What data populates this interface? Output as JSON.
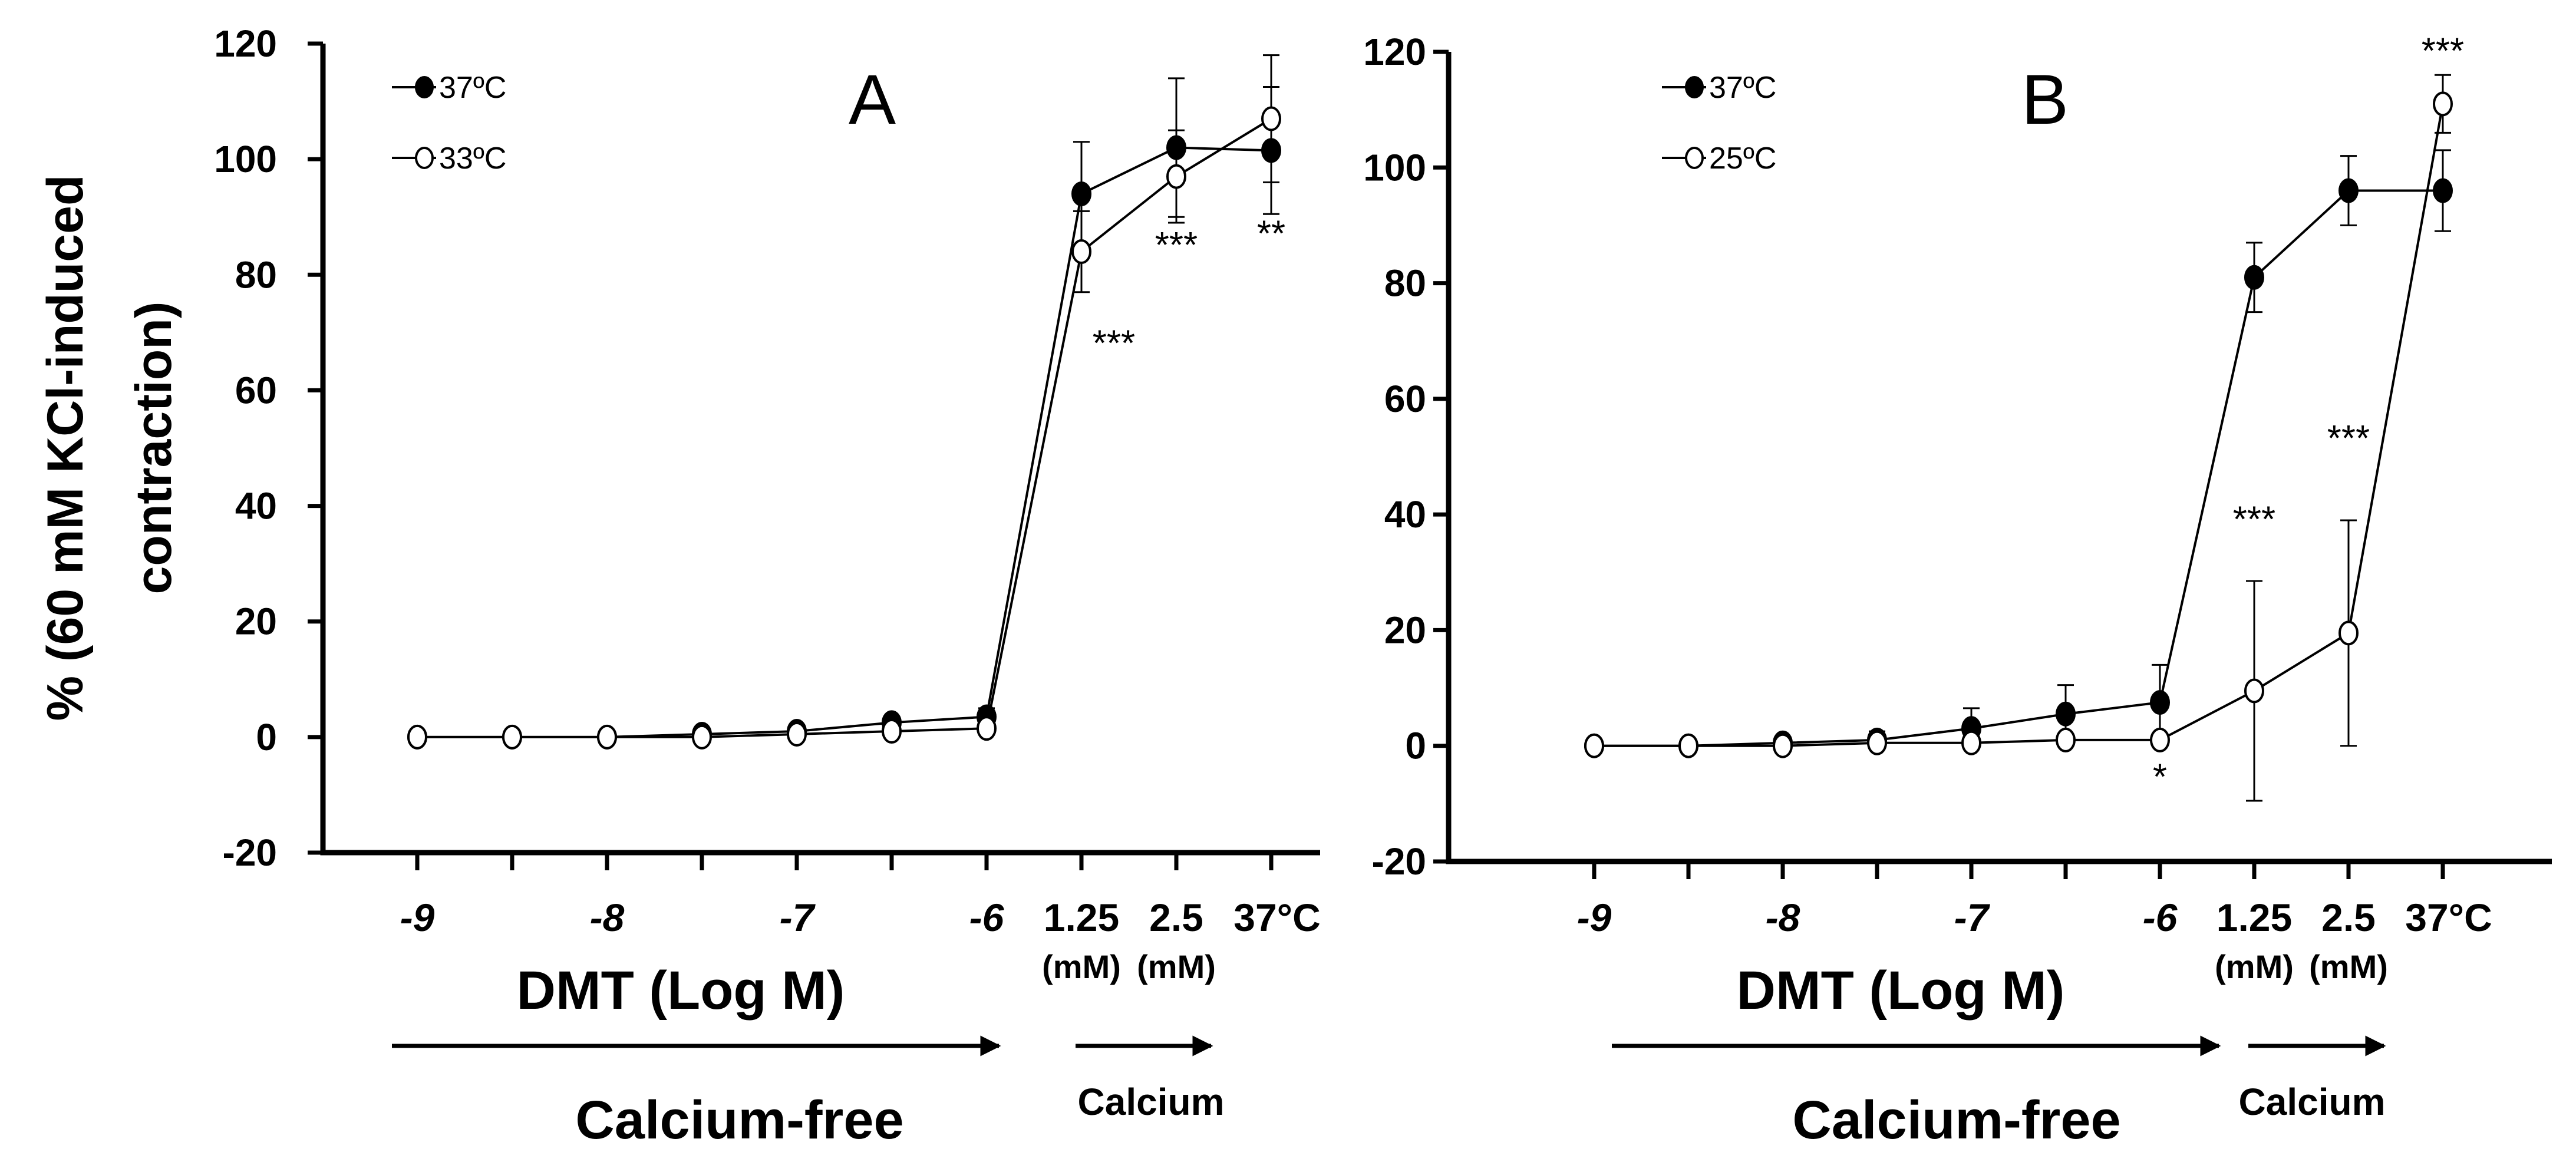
{
  "chart_data": [
    {
      "type": "line",
      "panel_label": "A",
      "ylabel_line1": "% (60 mM KCl-induced",
      "ylabel_line2": "contraction)",
      "xlabel": "DMT (Log M)",
      "ylim": [
        -20,
        120
      ],
      "y_ticks": [
        "120",
        "100",
        "80",
        "60",
        "40",
        "20",
        "0",
        "-20"
      ],
      "x_tick_labels": [
        "-9",
        "-8",
        "-7",
        "-6",
        "1.25",
        "2.5",
        "37°C"
      ],
      "x_unit_labels": [
        "(mM)",
        "(mM)"
      ],
      "region_labels": {
        "calcium_free": "Calcium-free",
        "calcium": "Calcium"
      },
      "series": [
        {
          "name": "37ºC",
          "marker": "filled",
          "values": [
            0,
            0,
            0,
            0.5,
            1,
            2.5,
            3.5,
            94,
            102,
            101.5
          ],
          "errors": [
            0.5,
            0.5,
            0.5,
            0.8,
            1,
            1,
            1.5,
            9,
            12,
            11
          ]
        },
        {
          "name": "33ºC",
          "marker": "open",
          "values": [
            0,
            0,
            0,
            0,
            0.5,
            1,
            1.5,
            84,
            97,
            107
          ],
          "errors": [
            0.5,
            0.5,
            0.5,
            0.5,
            0.5,
            0.5,
            0.8,
            7,
            8,
            11
          ]
        }
      ],
      "annotations": [
        {
          "text": "***",
          "index": 7,
          "y": 66
        },
        {
          "text": "***",
          "index": 8,
          "y": 83
        },
        {
          "text": "**",
          "index": 9,
          "y": 85
        }
      ]
    },
    {
      "type": "line",
      "panel_label": "B",
      "ylabel_line1": "",
      "ylabel_line2": "",
      "xlabel": "DMT (Log M)",
      "ylim": [
        -20,
        120
      ],
      "y_ticks": [
        "120",
        "100",
        "80",
        "60",
        "40",
        "20",
        "0",
        "-20"
      ],
      "x_tick_labels": [
        "-9",
        "-8",
        "-7",
        "-6",
        "1.25",
        "2.5",
        "37°C"
      ],
      "x_unit_labels": [
        "(mM)",
        "(mM)"
      ],
      "region_labels": {
        "calcium_free": "Calcium-free",
        "calcium": "Calcium"
      },
      "series": [
        {
          "name": "37ºC",
          "marker": "filled",
          "values": [
            0,
            0,
            0.5,
            1,
            3,
            5.5,
            7.5,
            81,
            96,
            96
          ],
          "errors": [
            0.5,
            0.5,
            0.8,
            1.5,
            3.5,
            5,
            6.5,
            6,
            6,
            7
          ]
        },
        {
          "name": "25ºC",
          "marker": "open",
          "values": [
            0,
            0,
            0,
            0.5,
            0.5,
            1,
            1,
            9.5,
            19.5,
            111
          ],
          "errors": [
            0.5,
            0.5,
            0.5,
            0.5,
            0.5,
            0.5,
            1,
            19,
            19.5,
            5
          ]
        }
      ],
      "annotations": [
        {
          "text": "*",
          "index": 6,
          "y": -7.5
        },
        {
          "text": "***",
          "index": 7,
          "y": 37
        },
        {
          "text": "***",
          "index": 8,
          "y": 51
        },
        {
          "text": "***",
          "index": 9,
          "y": 118
        }
      ]
    }
  ]
}
